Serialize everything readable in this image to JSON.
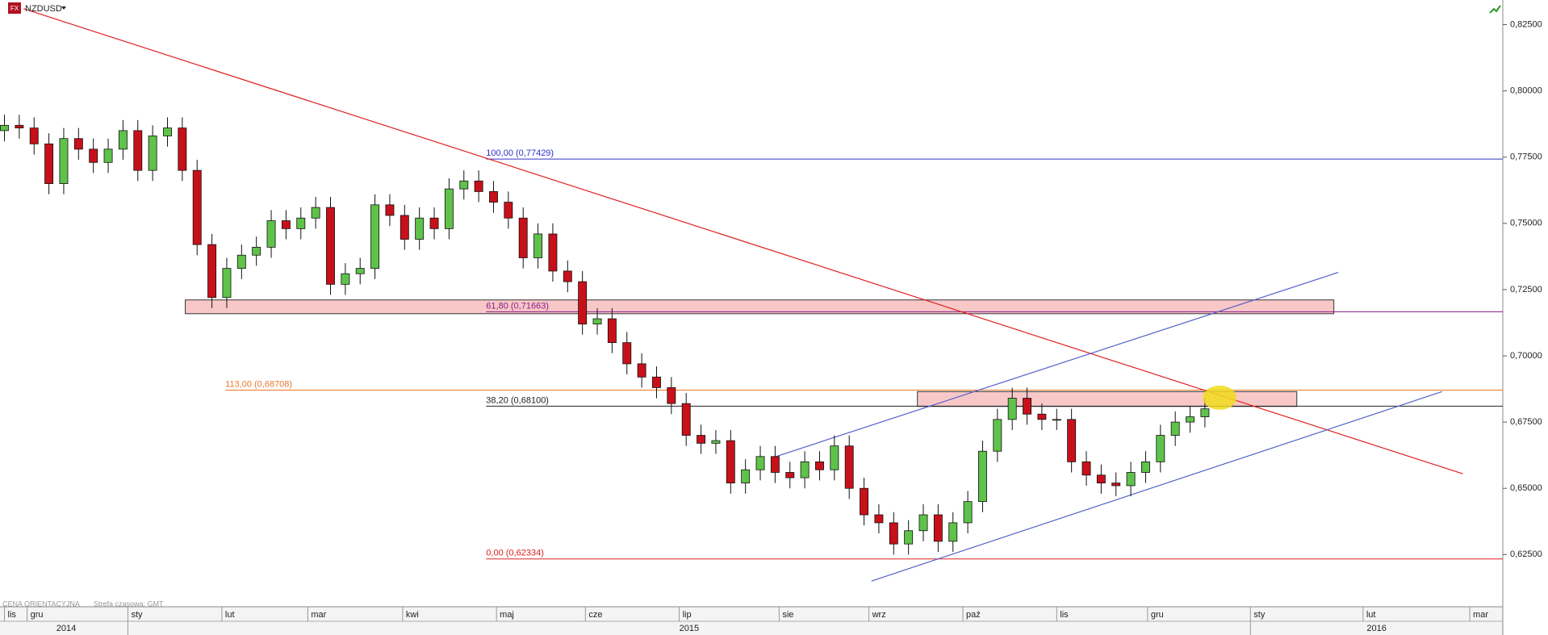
{
  "chart_data": {
    "type": "candlestick",
    "symbol": "NZDUSD",
    "badge": "FX",
    "footer_note": "CENA ORIENTACYJNA",
    "timezone_note": "Strefa czasowa: GMT",
    "up_color": "#5fc24a",
    "down_color": "#c8101a",
    "open": [
      0.785,
      0.787,
      0.786,
      0.78,
      0.765,
      0.782,
      0.778,
      0.773,
      0.778,
      0.785,
      0.77,
      0.783,
      0.786,
      0.77,
      0.742,
      0.722,
      0.733,
      0.738,
      0.741,
      0.751,
      0.748,
      0.752,
      0.756,
      0.727,
      0.731,
      0.733,
      0.757,
      0.753,
      0.744,
      0.752,
      0.748,
      0.763,
      0.766,
      0.762,
      0.758,
      0.752,
      0.737,
      0.746,
      0.732,
      0.728,
      0.712,
      0.714,
      0.705,
      0.697,
      0.692,
      0.688,
      0.682,
      0.67,
      0.667,
      0.668,
      0.652,
      0.657,
      0.662,
      0.656,
      0.654,
      0.66,
      0.657,
      0.666,
      0.65,
      0.64,
      0.637,
      0.629,
      0.634,
      0.64,
      0.63,
      0.637,
      0.645,
      0.664,
      0.676,
      0.684,
      0.678,
      0.676,
      0.676,
      0.66,
      0.655,
      0.652,
      0.651,
      0.656,
      0.66,
      0.67,
      0.675,
      0.677
    ],
    "high": [
      0.791,
      0.791,
      0.79,
      0.784,
      0.786,
      0.786,
      0.782,
      0.782,
      0.789,
      0.789,
      0.787,
      0.79,
      0.79,
      0.774,
      0.746,
      0.737,
      0.742,
      0.745,
      0.755,
      0.755,
      0.756,
      0.76,
      0.76,
      0.735,
      0.737,
      0.761,
      0.761,
      0.757,
      0.756,
      0.756,
      0.767,
      0.77,
      0.77,
      0.766,
      0.762,
      0.756,
      0.75,
      0.75,
      0.736,
      0.732,
      0.718,
      0.718,
      0.709,
      0.701,
      0.696,
      0.692,
      0.686,
      0.674,
      0.672,
      0.672,
      0.661,
      0.666,
      0.666,
      0.66,
      0.664,
      0.664,
      0.67,
      0.67,
      0.654,
      0.644,
      0.641,
      0.638,
      0.644,
      0.644,
      0.641,
      0.649,
      0.668,
      0.68,
      0.688,
      0.688,
      0.682,
      0.68,
      0.68,
      0.664,
      0.659,
      0.656,
      0.66,
      0.664,
      0.674,
      0.679,
      0.681,
      0.684
    ],
    "low": [
      0.781,
      0.782,
      0.776,
      0.761,
      0.761,
      0.774,
      0.769,
      0.769,
      0.774,
      0.766,
      0.766,
      0.779,
      0.766,
      0.738,
      0.718,
      0.718,
      0.729,
      0.734,
      0.737,
      0.744,
      0.744,
      0.748,
      0.723,
      0.723,
      0.727,
      0.729,
      0.749,
      0.74,
      0.74,
      0.744,
      0.744,
      0.759,
      0.758,
      0.754,
      0.748,
      0.733,
      0.733,
      0.728,
      0.724,
      0.708,
      0.708,
      0.701,
      0.693,
      0.688,
      0.684,
      0.678,
      0.666,
      0.663,
      0.663,
      0.648,
      0.648,
      0.653,
      0.652,
      0.65,
      0.65,
      0.653,
      0.653,
      0.646,
      0.636,
      0.633,
      0.625,
      0.625,
      0.63,
      0.626,
      0.626,
      0.633,
      0.641,
      0.66,
      0.672,
      0.674,
      0.672,
      0.672,
      0.656,
      0.651,
      0.648,
      0.647,
      0.647,
      0.652,
      0.656,
      0.666,
      0.671,
      0.673
    ],
    "close": [
      0.787,
      0.786,
      0.78,
      0.765,
      0.782,
      0.778,
      0.773,
      0.778,
      0.785,
      0.77,
      0.783,
      0.786,
      0.77,
      0.742,
      0.722,
      0.733,
      0.738,
      0.741,
      0.751,
      0.748,
      0.752,
      0.756,
      0.727,
      0.731,
      0.733,
      0.757,
      0.753,
      0.744,
      0.752,
      0.748,
      0.763,
      0.766,
      0.762,
      0.758,
      0.752,
      0.737,
      0.746,
      0.732,
      0.728,
      0.712,
      0.714,
      0.705,
      0.697,
      0.692,
      0.688,
      0.682,
      0.67,
      0.667,
      0.668,
      0.652,
      0.657,
      0.662,
      0.656,
      0.654,
      0.66,
      0.657,
      0.666,
      0.65,
      0.64,
      0.637,
      0.629,
      0.634,
      0.64,
      0.63,
      0.637,
      0.645,
      0.664,
      0.676,
      0.684,
      0.678,
      0.676,
      0.676,
      0.66,
      0.655,
      0.652,
      0.651,
      0.656,
      0.66,
      0.67,
      0.675,
      0.677,
      0.68
    ],
    "xlim": [
      -0.3,
      101.1
    ],
    "ylim": [
      0.6053,
      0.8343
    ],
    "yticks": [
      {
        "value": 0.625,
        "label": "0,62500"
      },
      {
        "value": 0.65,
        "label": "0,65000"
      },
      {
        "value": 0.675,
        "label": "0,67500"
      },
      {
        "value": 0.7,
        "label": "0,70000"
      },
      {
        "value": 0.725,
        "label": "0,72500"
      },
      {
        "value": 0.75,
        "label": "0,75000"
      },
      {
        "value": 0.775,
        "label": "0,77500"
      },
      {
        "value": 0.8,
        "label": "0,80000"
      },
      {
        "value": 0.825,
        "label": "0,82500"
      }
    ],
    "xticks": [
      {
        "value": 0,
        "label": "lis"
      },
      {
        "value": 1.53,
        "label": "gru"
      },
      {
        "value": 8.33,
        "label": "sty"
      },
      {
        "value": 14.67,
        "label": "lut"
      },
      {
        "value": 20.47,
        "label": "mar"
      },
      {
        "value": 26.87,
        "label": "kwi"
      },
      {
        "value": 33.2,
        "label": "maj"
      },
      {
        "value": 39.2,
        "label": "cze"
      },
      {
        "value": 45.53,
        "label": "lip"
      },
      {
        "value": 52.27,
        "label": "sie"
      },
      {
        "value": 58.33,
        "label": "wrz"
      },
      {
        "value": 64.67,
        "label": "paź"
      },
      {
        "value": 71,
        "label": "lis"
      },
      {
        "value": 77.13,
        "label": "gru"
      },
      {
        "value": 84.07,
        "label": "sty"
      },
      {
        "value": 91.67,
        "label": "lut"
      },
      {
        "value": 98.87,
        "label": "mar"
      }
    ],
    "years": [
      "2014",
      "2015",
      "2016"
    ],
    "year_starts": [
      0,
      8.33,
      84.07
    ],
    "grid": false,
    "levels": [
      {
        "label": "100,00 (0,77429)",
        "value": 0.77429,
        "start": 32.5,
        "color": "#3030c8"
      },
      {
        "label": "61,80 (0,71663)",
        "value": 0.71663,
        "start": 32.5,
        "color": "#8a1a8a"
      },
      {
        "label": "113,00 (0,68708)",
        "value": 0.68708,
        "start": 14.9,
        "color": "#e8782a"
      },
      {
        "label": "38,20 (0,68100)",
        "value": 0.681,
        "start": 32.5,
        "color": "#222222"
      },
      {
        "label": "0,00 (0,62334)",
        "value": 0.62334,
        "start": 32.5,
        "color": "#e02020"
      }
    ],
    "zones": [
      {
        "x": [
          12.2,
          89.7
        ],
        "y": [
          0.7159,
          0.7211
        ],
        "color": "#f8c8c8"
      },
      {
        "x": [
          61.6,
          87.2
        ],
        "y": [
          0.6809,
          0.6865
        ],
        "color": "#f8c8c8"
      }
    ],
    "trendlines": [
      {
        "x": [
          1.3,
          98.4
        ],
        "y": [
          0.831,
          0.6555
        ],
        "color": "#e02020"
      },
      {
        "x": [
          52,
          90
        ],
        "y": [
          0.6619,
          0.7315
        ],
        "color": "#5560c8"
      },
      {
        "x": [
          58.5,
          97
        ],
        "y": [
          0.615,
          0.6865
        ],
        "color": "#5560c8"
      }
    ],
    "highlight": {
      "x": 82,
      "y": 0.6842,
      "color": "#f2dc1e"
    }
  }
}
